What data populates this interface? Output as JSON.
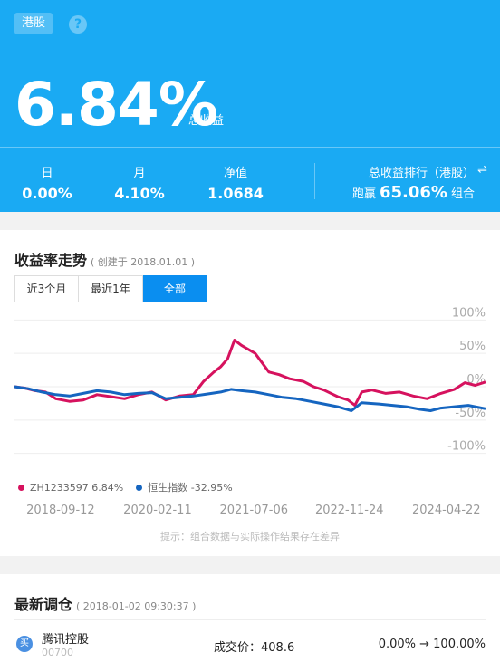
{
  "header": {
    "market_tag": "港股",
    "total_return": "6.84%",
    "total_return_label": "总收益",
    "stats": [
      {
        "label": "日",
        "value": "0.00%"
      },
      {
        "label": "月",
        "value": "4.10%"
      },
      {
        "label": "净值",
        "value": "1.0684"
      }
    ],
    "rank_label": "总收益排行（港股）",
    "rank_prefix": "跑赢",
    "rank_value": "65.06%",
    "rank_suffix": "组合"
  },
  "chart_section": {
    "title": "收益率走势",
    "created": "( 创建于 2018.01.01 )",
    "tabs": [
      "近3个月",
      "最近1年",
      "全部"
    ],
    "active_tab": 2,
    "disclaimer": "提示：组合数据与实际操作结果存在差异"
  },
  "chart_data": {
    "type": "line",
    "y_tick_labels": [
      "100%",
      "50%",
      "0%",
      "-50%",
      "-100%"
    ],
    "y_ticks": [
      100,
      50,
      0,
      -50,
      -100
    ],
    "ylim": [
      -110,
      110
    ],
    "x_tick_labels": [
      "2018-09-12",
      "2020-02-11",
      "2021-07-06",
      "2022-11-24",
      "2024-04-22"
    ],
    "x_tick_values": [
      2018.7,
      2020.11,
      2021.51,
      2022.9,
      2024.31
    ],
    "xlim": [
      2018.0,
      2024.85
    ],
    "legend_position": "bottom-left",
    "series": [
      {
        "name": "ZH1233597 6.84%",
        "color": "#d6125e",
        "points": [
          [
            2018.0,
            0
          ],
          [
            2018.15,
            -2
          ],
          [
            2018.3,
            -6
          ],
          [
            2018.45,
            -8
          ],
          [
            2018.6,
            -18
          ],
          [
            2018.8,
            -22
          ],
          [
            2019.0,
            -20
          ],
          [
            2019.2,
            -12
          ],
          [
            2019.4,
            -15
          ],
          [
            2019.6,
            -18
          ],
          [
            2019.8,
            -12
          ],
          [
            2020.0,
            -8
          ],
          [
            2020.1,
            -14
          ],
          [
            2020.2,
            -20
          ],
          [
            2020.4,
            -14
          ],
          [
            2020.6,
            -12
          ],
          [
            2020.75,
            8
          ],
          [
            2020.9,
            22
          ],
          [
            2021.0,
            30
          ],
          [
            2021.1,
            42
          ],
          [
            2021.2,
            70
          ],
          [
            2021.3,
            62
          ],
          [
            2021.5,
            50
          ],
          [
            2021.7,
            22
          ],
          [
            2021.85,
            18
          ],
          [
            2022.0,
            12
          ],
          [
            2022.2,
            8
          ],
          [
            2022.35,
            0
          ],
          [
            2022.5,
            -5
          ],
          [
            2022.7,
            -15
          ],
          [
            2022.85,
            -20
          ],
          [
            2022.95,
            -28
          ],
          [
            2023.05,
            -8
          ],
          [
            2023.2,
            -5
          ],
          [
            2023.4,
            -10
          ],
          [
            2023.6,
            -8
          ],
          [
            2023.8,
            -14
          ],
          [
            2024.0,
            -18
          ],
          [
            2024.2,
            -10
          ],
          [
            2024.4,
            -4
          ],
          [
            2024.55,
            6
          ],
          [
            2024.7,
            2
          ],
          [
            2024.85,
            7
          ]
        ]
      },
      {
        "name": "恒生指数 -32.95%",
        "color": "#1565c0",
        "points": [
          [
            2018.0,
            0
          ],
          [
            2018.2,
            -3
          ],
          [
            2018.4,
            -8
          ],
          [
            2018.6,
            -12
          ],
          [
            2018.8,
            -14
          ],
          [
            2019.0,
            -10
          ],
          [
            2019.2,
            -6
          ],
          [
            2019.4,
            -8
          ],
          [
            2019.6,
            -12
          ],
          [
            2019.8,
            -10
          ],
          [
            2020.0,
            -9
          ],
          [
            2020.2,
            -18
          ],
          [
            2020.4,
            -16
          ],
          [
            2020.6,
            -14
          ],
          [
            2020.8,
            -11
          ],
          [
            2021.0,
            -8
          ],
          [
            2021.15,
            -4
          ],
          [
            2021.3,
            -6
          ],
          [
            2021.5,
            -8
          ],
          [
            2021.7,
            -12
          ],
          [
            2021.9,
            -16
          ],
          [
            2022.1,
            -18
          ],
          [
            2022.3,
            -22
          ],
          [
            2022.5,
            -26
          ],
          [
            2022.7,
            -30
          ],
          [
            2022.9,
            -36
          ],
          [
            2023.05,
            -24
          ],
          [
            2023.3,
            -26
          ],
          [
            2023.5,
            -28
          ],
          [
            2023.7,
            -30
          ],
          [
            2023.9,
            -34
          ],
          [
            2024.05,
            -36
          ],
          [
            2024.2,
            -32
          ],
          [
            2024.4,
            -30
          ],
          [
            2024.6,
            -28
          ],
          [
            2024.85,
            -33
          ]
        ]
      }
    ]
  },
  "trades_section": {
    "title": "最新调仓",
    "time": "( 2018-01-02 09:30:37 )",
    "items": [
      {
        "action": "买",
        "name": "腾讯控股",
        "code": "00700",
        "price_text": "成交价：408.6",
        "weight_text": "0.00% → 100.00%"
      }
    ]
  }
}
